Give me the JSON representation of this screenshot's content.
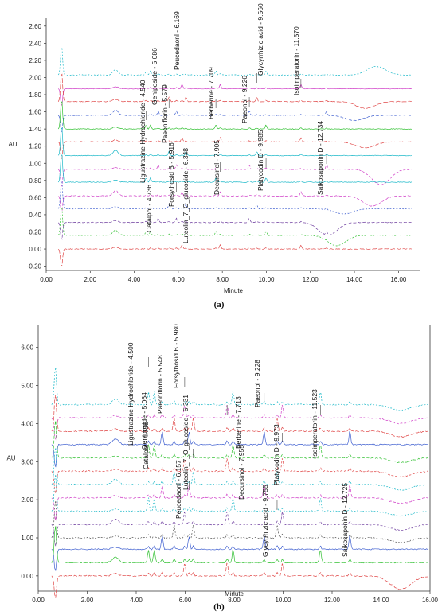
{
  "chart_data": [
    {
      "type": "line",
      "panel_label": "(a)",
      "ylabel": "AU",
      "xlabel": "Minute",
      "xlim": [
        0,
        17
      ],
      "ylim": [
        -0.25,
        2.7
      ],
      "xticks": [
        "0.00",
        "2.00",
        "4.00",
        "6.00",
        "8.00",
        "10.00",
        "12.00",
        "14.00",
        "16.00"
      ],
      "xtick_values": [
        0,
        2,
        4,
        6,
        8,
        10,
        12,
        14,
        16
      ],
      "yticks": [
        "-0.20",
        "0.00",
        "0.20",
        "0.40",
        "0.60",
        "0.80",
        "1.00",
        "1.20",
        "1.40",
        "1.60",
        "1.80",
        "2.00",
        "2.20",
        "2.40",
        "2.60"
      ],
      "ytick_values": [
        -0.2,
        0,
        0.2,
        0.4,
        0.6,
        0.8,
        1.0,
        1.2,
        1.4,
        1.6,
        1.8,
        2.0,
        2.2,
        2.4,
        2.6
      ],
      "grid": false,
      "x_end": 16.6,
      "series": [
        {
          "color": "#1ab8c8",
          "baseline": 2.03,
          "dash": "2,2",
          "bump": [
            15.0,
            0.1
          ]
        },
        {
          "color": "#d040c8",
          "baseline": 1.87,
          "dash": ""
        },
        {
          "color": "#e04848",
          "baseline": 1.72,
          "dash": "6,2",
          "bump": [
            14.5,
            -0.08
          ]
        },
        {
          "color": "#4060d0",
          "baseline": 1.56,
          "dash": "4,2",
          "bump": [
            14.0,
            -0.06
          ]
        },
        {
          "color": "#30c030",
          "baseline": 1.4,
          "dash": ""
        },
        {
          "color": "#e04848",
          "baseline": 1.25,
          "dash": "5,2",
          "bump": [
            14.5,
            -0.07
          ]
        },
        {
          "color": "#1ab8c8",
          "baseline": 1.09,
          "dash": ""
        },
        {
          "color": "#d040c8",
          "baseline": 0.93,
          "dash": "3,2",
          "bump": [
            15.2,
            -0.18
          ]
        },
        {
          "color": "#1ab8c8",
          "baseline": 0.78,
          "dash": ""
        },
        {
          "color": "#d040c8",
          "baseline": 0.62,
          "dash": "4,2",
          "bump": [
            14.8,
            -0.12
          ]
        },
        {
          "color": "#4060d0",
          "baseline": 0.47,
          "dash": "2,2",
          "bump": [
            13.5,
            -0.06
          ]
        },
        {
          "color": "#7040a0",
          "baseline": 0.31,
          "dash": "4,2",
          "bump": [
            12.8,
            -0.15
          ]
        },
        {
          "color": "#30c030",
          "baseline": 0.16,
          "dash": "2,2",
          "bump": [
            13.2,
            -0.12
          ]
        },
        {
          "color": "#e04848",
          "baseline": 0.0,
          "dash": "6,2"
        }
      ],
      "peaks": [
        {
          "text": "Ligustrazine Hydrochloride - 4.540",
          "x": 4.54
        },
        {
          "text": "Geniposide - 5.086",
          "x": 5.086
        },
        {
          "text": "Paeoniflorin - 5.579",
          "x": 5.579
        },
        {
          "text": "Peucedaonl - 6.169",
          "x": 6.169
        },
        {
          "text": "Berberine - 7.709",
          "x": 7.709
        },
        {
          "text": "Paeonol - 9.226",
          "x": 9.226
        },
        {
          "text": "Glycyrrhizic acid - 9.560",
          "x": 9.56
        },
        {
          "text": "Isoimperatorin - 11.570",
          "x": 11.57
        },
        {
          "text": "Catalpol - 4.736",
          "x": 4.736
        },
        {
          "text": "Forsythosid B - 5.916",
          "x": 5.916
        },
        {
          "text": "Luteolin_7_O_glucoside - 6.348",
          "x": 6.348
        },
        {
          "text": "Decursinol - 7.905",
          "x": 7.905
        },
        {
          "text": "Platycodin D - 9.985",
          "x": 9.985
        },
        {
          "text": "Saikosaponin D - 12.734",
          "x": 12.734
        }
      ]
    },
    {
      "type": "line",
      "panel_label": "(b)",
      "ylabel": "AU",
      "xlabel": "Minute",
      "xlim": [
        0,
        16
      ],
      "ylim": [
        -0.4,
        6.6
      ],
      "xticks": [
        "0.00",
        "2.00",
        "4.00",
        "6.00",
        "8.00",
        "10.00",
        "12.00",
        "14.00",
        "16.00"
      ],
      "xtick_values": [
        0,
        2,
        4,
        6,
        8,
        10,
        12,
        14,
        16
      ],
      "yticks": [
        "0.00",
        "1.00",
        "2.00",
        "3.00",
        "4.00",
        "5.00",
        "6.00"
      ],
      "ytick_values": [
        0,
        1,
        2,
        3,
        4,
        5,
        6
      ],
      "grid": false,
      "x_end": 15.9,
      "series": [
        {
          "color": "#1ab8c8",
          "baseline": 4.5,
          "dash": "2,2",
          "bump": [
            14.8,
            -0.15
          ]
        },
        {
          "color": "#d040c8",
          "baseline": 4.15,
          "dash": "3,2",
          "bump": [
            14.8,
            -0.15
          ]
        },
        {
          "color": "#e04848",
          "baseline": 3.8,
          "dash": "5,2",
          "bump": [
            14.8,
            -0.15
          ]
        },
        {
          "color": "#4060d0",
          "baseline": 3.45,
          "dash": ""
        },
        {
          "color": "#30c030",
          "baseline": 3.1,
          "dash": "4,2",
          "bump": [
            14.8,
            -0.12
          ]
        },
        {
          "color": "#e04848",
          "baseline": 2.75,
          "dash": "3,2",
          "bump": [
            14.8,
            -0.15
          ]
        },
        {
          "color": "#1ab8c8",
          "baseline": 2.4,
          "dash": "2,2",
          "bump": [
            14.8,
            -0.15
          ]
        },
        {
          "color": "#d040c8",
          "baseline": 2.05,
          "dash": "4,2",
          "bump": [
            14.8,
            -0.15
          ]
        },
        {
          "color": "#1ab8c8",
          "baseline": 1.7,
          "dash": "2,2",
          "bump": [
            14.8,
            -0.12
          ]
        },
        {
          "color": "#7040a0",
          "baseline": 1.35,
          "dash": "3,2",
          "bump": [
            14.8,
            -0.15
          ]
        },
        {
          "color": "#555555",
          "baseline": 1.0,
          "dash": "2,2",
          "bump": [
            14.8,
            -0.12
          ]
        },
        {
          "color": "#4060d0",
          "baseline": 0.7,
          "dash": ""
        },
        {
          "color": "#30c030",
          "baseline": 0.35,
          "dash": ""
        },
        {
          "color": "#e04848",
          "baseline": 0.0,
          "dash": "5,2",
          "bump": [
            14.8,
            -0.35
          ]
        }
      ],
      "peaks": [
        {
          "text": "Ligustrazine Hydrochloride - 4.500",
          "x": 4.5
        },
        {
          "text": "Geniposide - 5.064",
          "x": 5.064
        },
        {
          "text": "Paeoniflorin - 5.548",
          "x": 5.548
        },
        {
          "text": "Forsythosid B - 5.980",
          "x": 5.98
        },
        {
          "text": "Catalpol - 4.738",
          "x": 4.738
        },
        {
          "text": "Peucedaonl - 6.157",
          "x": 6.157
        },
        {
          "text": "Luteolin_7_O_glucoside - 6.331",
          "x": 6.331
        },
        {
          "text": "Berberine - 7.713",
          "x": 7.713
        },
        {
          "text": "Decursinol - 7.955",
          "x": 7.955
        },
        {
          "text": "Paeonol - 9.228",
          "x": 9.228
        },
        {
          "text": "Glycyrrhizic acid - 9.755",
          "x": 9.755
        },
        {
          "text": "Platycodin D - 9.973",
          "x": 9.973
        },
        {
          "text": "Isoimperatorin - 11.523",
          "x": 11.523
        },
        {
          "text": "Saikosaponin D - 12.725",
          "x": 12.725
        }
      ]
    }
  ]
}
